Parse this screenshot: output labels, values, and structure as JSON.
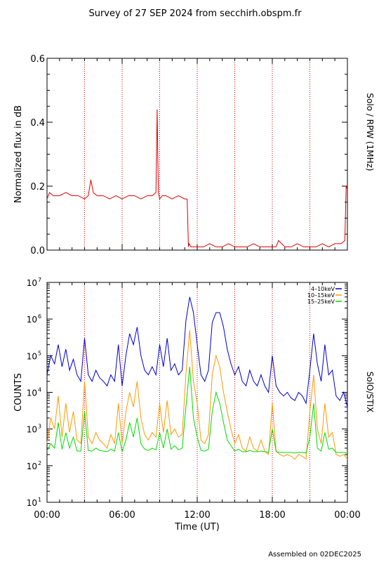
{
  "page": {
    "title": "Survey of 27 SEP 2024 from secchirh.obspm.fr",
    "footer": "Assembled on 02DEC2025"
  },
  "colors": {
    "rpw": "#dd0000",
    "vline": "#cc0000",
    "stix_low": "#0000cc",
    "stix_mid": "#ff9900",
    "stix_high": "#00dd00"
  },
  "chart_data": [
    {
      "type": "line",
      "instrument_label": "Solo / RPW (1MHz)",
      "ylabel": "Normalized flux in dB",
      "xlim": [
        0,
        24
      ],
      "ylim": [
        0,
        0.6
      ],
      "yticks": [
        {
          "value": 0.0,
          "label": "0.0"
        },
        {
          "value": 0.2,
          "label": "0.2"
        },
        {
          "value": 0.4,
          "label": "0.4"
        },
        {
          "value": 0.6,
          "label": "0.6"
        }
      ],
      "vlines_hours": [
        3,
        6,
        9,
        12,
        15,
        18,
        21
      ],
      "series": [
        {
          "color": "#dd0000",
          "x": [
            0,
            0.2,
            0.5,
            1,
            1.5,
            2,
            2.5,
            3,
            3.3,
            3.5,
            3.7,
            4,
            4.5,
            5,
            5.5,
            6,
            6.5,
            7,
            7.5,
            8,
            8.4,
            8.7,
            8.8,
            8.85,
            8.9,
            9,
            9.2,
            9.5,
            10,
            10.5,
            11,
            11.2,
            11.3,
            11.35,
            11.5,
            12,
            12.5,
            13,
            13.5,
            14,
            14.5,
            15,
            15.5,
            16,
            16.5,
            17,
            17.5,
            18,
            18.3,
            18.5,
            19,
            19.5,
            20,
            20.5,
            21,
            21.5,
            22,
            22.5,
            23,
            23.5,
            23.8,
            23.9,
            24
          ],
          "values": [
            0.16,
            0.18,
            0.17,
            0.17,
            0.18,
            0.17,
            0.17,
            0.16,
            0.17,
            0.22,
            0.18,
            0.17,
            0.17,
            0.16,
            0.17,
            0.16,
            0.17,
            0.17,
            0.16,
            0.17,
            0.17,
            0.18,
            0.44,
            0.3,
            0.18,
            0.16,
            0.17,
            0.17,
            0.16,
            0.17,
            0.16,
            0.16,
            0.01,
            0.02,
            0.01,
            0.01,
            0.01,
            0.02,
            0.01,
            0.01,
            0.02,
            0.01,
            0.01,
            0.01,
            0.02,
            0.01,
            0.01,
            0.01,
            0.01,
            0.03,
            0.01,
            0.01,
            0.02,
            0.01,
            0.01,
            0.01,
            0.02,
            0.01,
            0.02,
            0.02,
            0.03,
            0.2,
            0.19
          ]
        }
      ]
    },
    {
      "type": "line",
      "instrument_label": "SolO/STIX",
      "ylabel": "COUNTS",
      "xlabel": "Time (UT)",
      "xlim": [
        0,
        24
      ],
      "xticks": [
        {
          "value": 0,
          "label": "00:00"
        },
        {
          "value": 6,
          "label": "06:00"
        },
        {
          "value": 12,
          "label": "12:00"
        },
        {
          "value": 18,
          "label": "18:00"
        },
        {
          "value": 24,
          "label": "00:00"
        }
      ],
      "ylim": [
        10,
        10000000
      ],
      "yscale": "log",
      "yticks": [
        {
          "exp": 1,
          "base": "10",
          "sup": "1"
        },
        {
          "exp": 2,
          "base": "10",
          "sup": "2"
        },
        {
          "exp": 3,
          "base": "10",
          "sup": "3"
        },
        {
          "exp": 4,
          "base": "10",
          "sup": "4"
        },
        {
          "exp": 5,
          "base": "10",
          "sup": "5"
        },
        {
          "exp": 6,
          "base": "10",
          "sup": "6"
        },
        {
          "exp": 7,
          "base": "10",
          "sup": "7"
        }
      ],
      "vlines_hours": [
        3,
        6,
        9,
        12,
        15,
        18,
        21
      ],
      "legend_position": "top-right",
      "series": [
        {
          "name": "4–10keV",
          "color": "#0000cc",
          "x": [
            0,
            0.3,
            0.6,
            0.9,
            1.2,
            1.5,
            1.8,
            2.1,
            2.4,
            2.7,
            3.0,
            3.3,
            3.6,
            3.9,
            4.2,
            4.5,
            4.8,
            5.1,
            5.4,
            5.7,
            6.0,
            6.3,
            6.6,
            6.9,
            7.2,
            7.5,
            7.8,
            8.1,
            8.4,
            8.7,
            9.0,
            9.3,
            9.6,
            9.9,
            10.2,
            10.5,
            10.8,
            11.1,
            11.4,
            11.7,
            12.0,
            12.3,
            12.6,
            12.9,
            13.2,
            13.5,
            13.8,
            14.1,
            14.4,
            14.7,
            15.0,
            15.3,
            15.6,
            15.9,
            16.2,
            16.5,
            16.8,
            17.1,
            17.4,
            17.7,
            18.0,
            18.3,
            18.6,
            18.9,
            19.2,
            19.5,
            19.8,
            20.1,
            20.4,
            20.7,
            21.0,
            21.3,
            21.6,
            21.9,
            22.2,
            22.5,
            22.8,
            23.1,
            23.4,
            23.7,
            24.0
          ],
          "values": [
            30000,
            100000,
            60000,
            200000,
            50000,
            150000,
            40000,
            80000,
            30000,
            20000,
            300000,
            30000,
            20000,
            40000,
            25000,
            20000,
            15000,
            30000,
            20000,
            200000,
            15000,
            100000,
            400000,
            200000,
            600000,
            100000,
            40000,
            30000,
            50000,
            30000,
            200000,
            50000,
            300000,
            40000,
            60000,
            30000,
            40000,
            900000,
            4000000,
            1500000,
            200000,
            30000,
            20000,
            40000,
            800000,
            1500000,
            1500000,
            600000,
            150000,
            60000,
            30000,
            50000,
            20000,
            15000,
            40000,
            20000,
            15000,
            30000,
            15000,
            10000,
            100000,
            15000,
            10000,
            8000,
            10000,
            7000,
            6000,
            10000,
            8000,
            5000,
            40000,
            400000,
            60000,
            20000,
            200000,
            30000,
            40000,
            8000,
            6000,
            10000,
            4000
          ]
        },
        {
          "name": "10–15keV",
          "color": "#ff9900",
          "x": [
            0,
            0.3,
            0.6,
            0.9,
            1.2,
            1.5,
            1.8,
            2.1,
            2.4,
            2.7,
            3.0,
            3.3,
            3.6,
            3.9,
            4.2,
            4.5,
            4.8,
            5.1,
            5.4,
            5.7,
            6.0,
            6.3,
            6.6,
            6.9,
            7.2,
            7.5,
            7.8,
            8.1,
            8.4,
            8.7,
            9.0,
            9.3,
            9.6,
            9.9,
            10.2,
            10.5,
            10.8,
            11.1,
            11.4,
            11.7,
            12.0,
            12.3,
            12.6,
            12.9,
            13.2,
            13.5,
            13.8,
            14.1,
            14.4,
            14.7,
            15.0,
            15.3,
            15.6,
            15.9,
            16.2,
            16.5,
            16.8,
            17.1,
            17.4,
            17.7,
            18.0,
            18.3,
            18.6,
            18.9,
            19.2,
            19.5,
            19.8,
            20.1,
            20.4,
            20.7,
            21.0,
            21.3,
            21.6,
            21.9,
            22.2,
            22.5,
            22.8,
            23.1,
            23.4,
            23.7,
            24.0
          ],
          "values": [
            400,
            2000,
            1000,
            8000,
            600,
            5000,
            800,
            3000,
            500,
            400,
            20000,
            600,
            400,
            800,
            500,
            400,
            300,
            700,
            400,
            5000,
            400,
            3000,
            10000,
            4000,
            20000,
            2000,
            700,
            500,
            800,
            600,
            5000,
            800,
            6000,
            700,
            1000,
            600,
            700,
            30000,
            500000,
            20000,
            5000,
            500,
            400,
            700,
            30000,
            100000,
            50000,
            10000,
            3000,
            1000,
            400,
            700,
            300,
            250,
            600,
            300,
            250,
            500,
            250,
            200,
            5000,
            250,
            200,
            180,
            200,
            180,
            150,
            200,
            180,
            150,
            3000,
            30000,
            1000,
            400,
            5000,
            600,
            800,
            200,
            180,
            200,
            150
          ]
        },
        {
          "name": "15–25keV",
          "color": "#00dd00",
          "x": [
            0,
            0.3,
            0.6,
            0.9,
            1.2,
            1.5,
            1.8,
            2.1,
            2.4,
            2.7,
            3.0,
            3.3,
            3.6,
            3.9,
            4.2,
            4.5,
            4.8,
            5.1,
            5.4,
            5.7,
            6.0,
            6.3,
            6.6,
            6.9,
            7.2,
            7.5,
            7.8,
            8.1,
            8.4,
            8.7,
            9.0,
            9.3,
            9.6,
            9.9,
            10.2,
            10.5,
            10.8,
            11.1,
            11.4,
            11.7,
            12.0,
            12.3,
            12.6,
            12.9,
            13.2,
            13.5,
            13.8,
            14.1,
            14.4,
            14.7,
            15.0,
            15.3,
            15.6,
            15.9,
            16.2,
            16.5,
            16.8,
            17.1,
            17.4,
            17.7,
            18.0,
            18.3,
            18.6,
            18.9,
            19.2,
            19.5,
            19.8,
            20.1,
            20.4,
            20.7,
            21.0,
            21.3,
            21.6,
            21.9,
            22.2,
            22.5,
            22.8,
            23.1,
            23.4,
            23.7,
            24.0
          ],
          "values": [
            250,
            400,
            300,
            1500,
            280,
            800,
            300,
            600,
            250,
            250,
            3000,
            260,
            250,
            300,
            260,
            250,
            240,
            280,
            250,
            800,
            240,
            500,
            1500,
            600,
            2000,
            400,
            280,
            260,
            300,
            270,
            800,
            300,
            1000,
            280,
            350,
            270,
            300,
            4000,
            50000,
            2000,
            600,
            260,
            250,
            280,
            3000,
            10000,
            5000,
            1500,
            500,
            350,
            250,
            280,
            240,
            240,
            260,
            240,
            240,
            250,
            240,
            230,
            1000,
            240,
            230,
            230,
            230,
            230,
            220,
            230,
            230,
            220,
            600,
            5000,
            300,
            250,
            800,
            280,
            300,
            230,
            230,
            230,
            220
          ]
        }
      ]
    }
  ]
}
